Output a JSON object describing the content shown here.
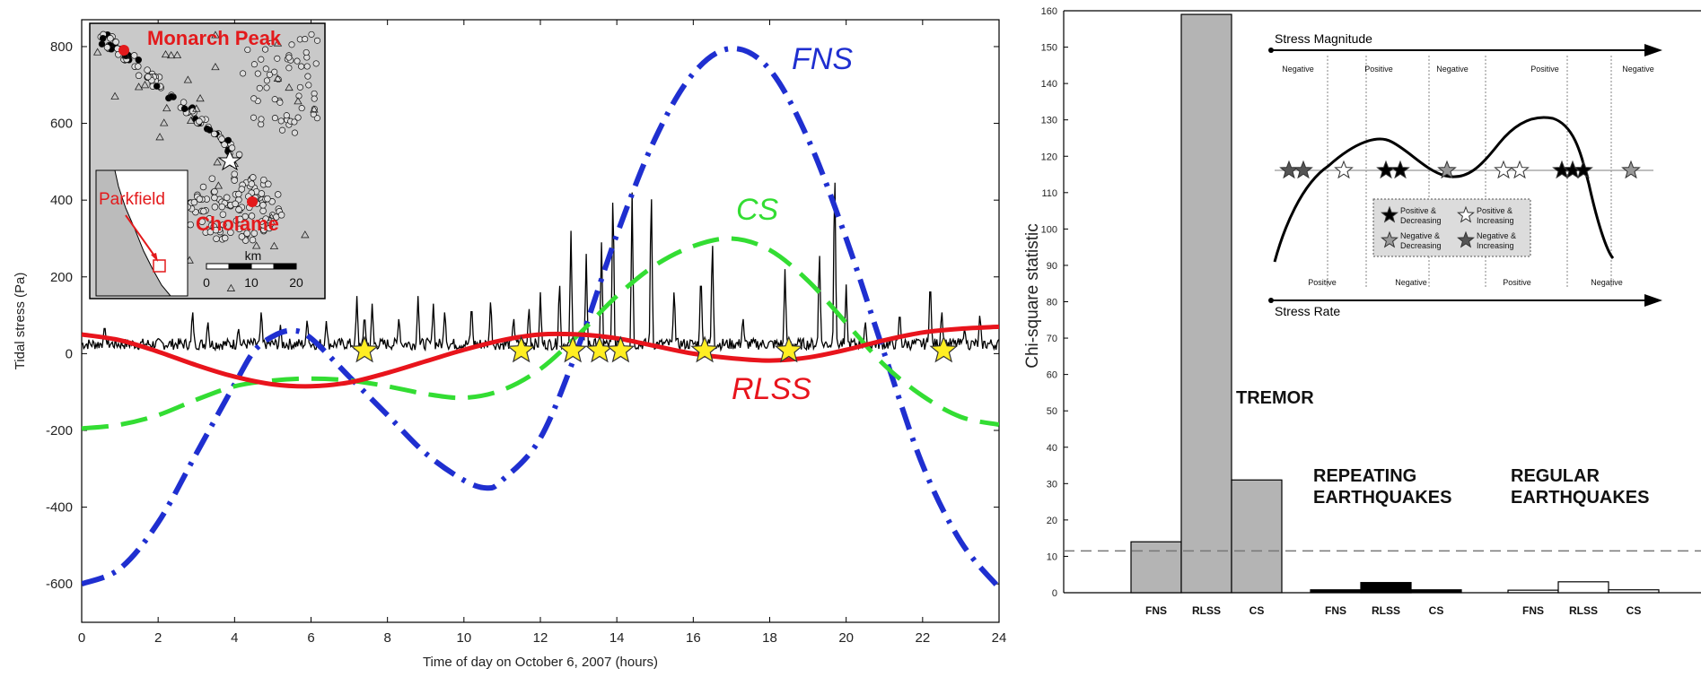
{
  "colors": {
    "fns": "#1f2fd0",
    "cs": "#33dd33",
    "rlss": "#e8141c",
    "tremor": "#000000",
    "star": "#ffee22",
    "map_label": "#e31a1c",
    "bar_gray": "#b4b4b4"
  },
  "chart_data": [
    {
      "type": "line",
      "xlabel": "Time of day on October 6, 2007 (hours)",
      "ylabel": "Tidal stress (Pa)",
      "xlim": [
        0,
        24
      ],
      "ylim": [
        -700,
        870
      ],
      "xticks": [
        0,
        2,
        4,
        6,
        8,
        10,
        12,
        14,
        16,
        18,
        20,
        22,
        24
      ],
      "yticks": [
        -600,
        -400,
        -200,
        0,
        200,
        400,
        600,
        800
      ],
      "grid": false,
      "series": [
        {
          "name": "FNS",
          "style": "dash-dot",
          "x": [
            0,
            1,
            2,
            3,
            4,
            4.5,
            5,
            5.5,
            6,
            7,
            8,
            9,
            10,
            10.6,
            11,
            12,
            13,
            14,
            15,
            16,
            17,
            18,
            19,
            20,
            21,
            22,
            23,
            24
          ],
          "y": [
            -600,
            -560,
            -440,
            -260,
            -80,
            5,
            45,
            60,
            40,
            -60,
            -160,
            -260,
            -330,
            -350,
            -330,
            -220,
            20,
            310,
            560,
            730,
            795,
            740,
            560,
            300,
            0,
            -290,
            -490,
            -610
          ]
        },
        {
          "name": "CS",
          "style": "dashed",
          "x": [
            0,
            1,
            2,
            3,
            4,
            5,
            6,
            7,
            8,
            9,
            10,
            11,
            12,
            13,
            14,
            15,
            16,
            17,
            18,
            19,
            20,
            21,
            22,
            23,
            24
          ],
          "y": [
            -195,
            -185,
            -160,
            -120,
            -85,
            -70,
            -65,
            -70,
            -85,
            -105,
            -115,
            -95,
            -40,
            50,
            150,
            230,
            280,
            300,
            270,
            190,
            80,
            -30,
            -110,
            -165,
            -185
          ]
        },
        {
          "name": "RLSS",
          "style": "solid",
          "x": [
            0,
            1,
            2,
            3,
            4,
            5,
            6,
            7,
            8,
            9,
            10,
            11,
            12,
            13,
            14,
            15,
            16,
            17,
            18,
            19,
            20,
            21,
            22,
            23,
            24
          ],
          "y": [
            50,
            35,
            5,
            -30,
            -60,
            -80,
            -85,
            -75,
            -50,
            -20,
            10,
            35,
            50,
            50,
            40,
            20,
            0,
            -12,
            -18,
            -10,
            10,
            35,
            55,
            65,
            70
          ]
        }
      ],
      "tremor_series": {
        "baseline": 25,
        "spikes": [
          [
            0.6,
            80
          ],
          [
            2.9,
            120
          ],
          [
            3.3,
            90
          ],
          [
            4.1,
            70
          ],
          [
            4.7,
            120
          ],
          [
            5.2,
            75
          ],
          [
            5.9,
            95
          ],
          [
            6.4,
            85
          ],
          [
            7.2,
            150
          ],
          [
            7.4,
            110
          ],
          [
            7.6,
            130
          ],
          [
            8.3,
            100
          ],
          [
            8.8,
            150
          ],
          [
            9.2,
            130
          ],
          [
            9.5,
            120
          ],
          [
            10.2,
            140
          ],
          [
            10.7,
            150
          ],
          [
            11.3,
            100
          ],
          [
            11.7,
            130
          ],
          [
            12.0,
            160
          ],
          [
            12.5,
            200
          ],
          [
            12.8,
            320
          ],
          [
            13.2,
            260
          ],
          [
            13.6,
            290
          ],
          [
            13.9,
            450
          ],
          [
            14.4,
            420
          ],
          [
            14.9,
            460
          ],
          [
            15.5,
            180
          ],
          [
            16.2,
            230
          ],
          [
            16.5,
            320
          ],
          [
            17.3,
            100
          ],
          [
            18.4,
            220
          ],
          [
            19.3,
            290
          ],
          [
            19.7,
            510
          ],
          [
            20.0,
            180
          ],
          [
            20.5,
            90
          ],
          [
            21.4,
            120
          ],
          [
            22.2,
            210
          ],
          [
            22.5,
            120
          ],
          [
            23.1,
            70
          ],
          [
            23.5,
            110
          ]
        ]
      },
      "star_markers_x": [
        7.4,
        11.5,
        12.85,
        13.55,
        14.1,
        16.3,
        18.5,
        22.55
      ]
    },
    {
      "type": "bar",
      "ylabel": "Chi-square statistic",
      "ylim": [
        0,
        160
      ],
      "yticks": [
        0,
        10,
        20,
        30,
        40,
        50,
        60,
        70,
        80,
        90,
        100,
        110,
        120,
        130,
        140,
        150,
        160
      ],
      "threshold": 11.5,
      "groups": [
        {
          "label": "TREMOR",
          "categories": [
            "FNS",
            "RLSS",
            "CS"
          ],
          "values": [
            14,
            159,
            31
          ],
          "fill": "#b4b4b4"
        },
        {
          "label_line1": "REPEATING",
          "label_line2": "EARTHQUAKES",
          "categories": [
            "FNS",
            "RLSS",
            "CS"
          ],
          "values": [
            0.8,
            2.8,
            0.8
          ],
          "fill": "#000000"
        },
        {
          "label_line1": "REGULAR",
          "label_line2": "EARTHQUAKES",
          "categories": [
            "FNS",
            "RLSS",
            "CS"
          ],
          "values": [
            0.7,
            3.0,
            0.8
          ],
          "fill": "#ffffff"
        }
      ]
    }
  ],
  "map_inset": {
    "label_monarch": "Monarch Peak",
    "label_cholame": "Cholame",
    "label_parkfield": "Parkfield",
    "scale_unit": "km",
    "scale_ticks": [
      "0",
      "10",
      "20"
    ]
  },
  "schematic_inset": {
    "top_label": "Stress Magnitude",
    "bottom_label": "Stress Rate",
    "magnitude_segments": [
      "Negative",
      "Positive",
      "Negative",
      "Positive",
      "Negative"
    ],
    "rate_segments": [
      "Positive",
      "Negative",
      "Positive",
      "Negative"
    ],
    "legend": [
      {
        "line1": "Positive &",
        "line2": "Decreasing",
        "fill": "#000000"
      },
      {
        "line1": "Positive &",
        "line2": "Increasing",
        "fill": "#ffffff"
      },
      {
        "line1": "Negative &",
        "line2": "Decreasing",
        "fill": "#999999"
      },
      {
        "line1": "Negative &",
        "line2": "Increasing",
        "fill": "#555555"
      }
    ]
  }
}
